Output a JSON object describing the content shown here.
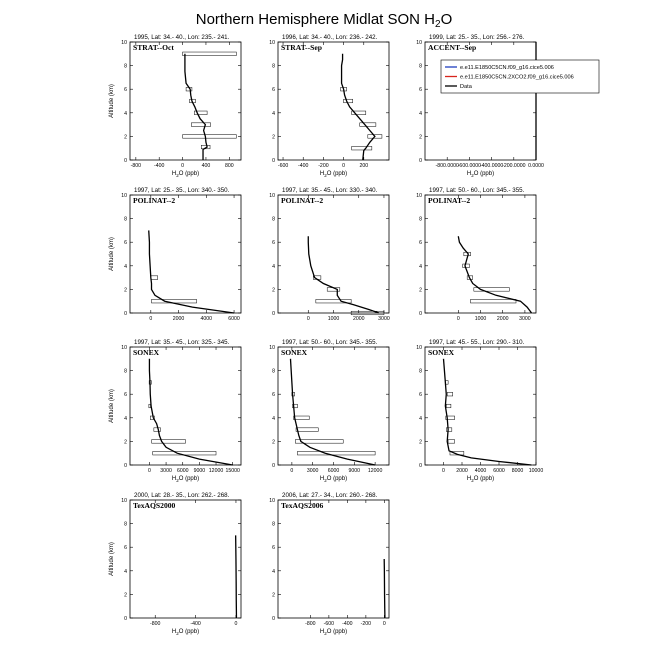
{
  "figure": {
    "title": "Northern Hemisphere Midlat SON H",
    "title_sub": "2",
    "title_tail": "O"
  },
  "legend": {
    "placement": "top-right, inside third panel",
    "entries": [
      {
        "label": "e.e11.E1850C5CN.f09_g16.cice5.006",
        "color": "#1f3fbf"
      },
      {
        "label": "e.e11.E1850C5CN.2XCO2.f09_g16.cice5.006",
        "color": "#d8241c"
      },
      {
        "label": "Data",
        "color": "#000000"
      }
    ]
  },
  "chart_data": [
    {
      "type": "line",
      "header": "1995, Lat: 34.- 40., Lon: 235.- 241.",
      "label": "STRAT--Oct",
      "xlabel": "H2O (ppb)",
      "ylabel": "Altitude (km)",
      "xlim": [
        -900,
        1000
      ],
      "ylim": [
        0,
        10
      ],
      "xticks": [
        -800,
        -400,
        0,
        400,
        800
      ],
      "yticks": [
        0,
        2,
        4,
        6,
        8,
        10
      ],
      "profile": [
        [
          350,
          0
        ],
        [
          350,
          0.9
        ],
        [
          420,
          1.1
        ],
        [
          400,
          1.5
        ],
        [
          390,
          2
        ],
        [
          360,
          2.5
        ],
        [
          390,
          3
        ],
        [
          300,
          3.5
        ],
        [
          250,
          4
        ],
        [
          210,
          4.5
        ],
        [
          160,
          5
        ],
        [
          140,
          5.5
        ],
        [
          130,
          6
        ],
        [
          60,
          6.5
        ],
        [
          50,
          7
        ],
        [
          40,
          7.5
        ],
        [
          40,
          8
        ],
        [
          40,
          8.5
        ],
        [
          40,
          9
        ]
      ],
      "boxes": [
        [
          320,
          470,
          0.95,
          1.25
        ],
        [
          0,
          920,
          1.85,
          2.15
        ],
        [
          150,
          480,
          2.85,
          3.15
        ],
        [
          200,
          420,
          3.85,
          4.15
        ],
        [
          120,
          220,
          4.85,
          5.15
        ],
        [
          60,
          160,
          5.85,
          6.15
        ],
        [
          0,
          920,
          8.85,
          9.15
        ]
      ]
    },
    {
      "type": "line",
      "header": "1996, Lat: 34.- 40., Lon: 236.- 242.",
      "label": "STRAT--Sep",
      "xlabel": "H2O (ppb)",
      "ylabel": "",
      "xlim": [
        -650,
        450
      ],
      "ylim": [
        0,
        10
      ],
      "xticks": [
        -600,
        -400,
        -200,
        0,
        200
      ],
      "yticks": [
        0,
        2,
        4,
        6,
        8,
        10
      ],
      "profile": [
        [
          190,
          0
        ],
        [
          200,
          0.8
        ],
        [
          220,
          1
        ],
        [
          260,
          1.5
        ],
        [
          310,
          2
        ],
        [
          260,
          2.5
        ],
        [
          210,
          3
        ],
        [
          160,
          3.5
        ],
        [
          110,
          4
        ],
        [
          60,
          4.5
        ],
        [
          30,
          5
        ],
        [
          10,
          5.5
        ],
        [
          0,
          6
        ],
        [
          -20,
          6.5
        ],
        [
          -20,
          7
        ],
        [
          -20,
          7.5
        ],
        [
          -20,
          8
        ],
        [
          -10,
          8.5
        ],
        [
          -10,
          9
        ]
      ],
      "boxes": [
        [
          80,
          280,
          0.85,
          1.15
        ],
        [
          240,
          380,
          1.85,
          2.15
        ],
        [
          160,
          320,
          2.85,
          3.15
        ],
        [
          80,
          220,
          3.85,
          4.15
        ],
        [
          0,
          90,
          4.85,
          5.15
        ],
        [
          -30,
          30,
          5.85,
          6.15
        ]
      ]
    },
    {
      "type": "line",
      "header": "1999, Lat: 25.- 35., Lon: 256.- 276.",
      "label": "ACCENT--Sep",
      "xlabel": "H2O (ppb)",
      "ylabel": "",
      "xlim": [
        -1000000,
        0
      ],
      "ylim": [
        0,
        10
      ],
      "xticks": [
        -800000,
        -600000,
        -400000,
        -200000,
        0
      ],
      "xticklabels": [
        "-800.0000",
        "-600.0000",
        "-400.0000",
        "-200.0000",
        "0.0000"
      ],
      "yticks": [
        0,
        2,
        4,
        6,
        8,
        10
      ],
      "profile": [
        [
          0,
          0
        ],
        [
          0,
          10
        ]
      ],
      "boxes": []
    },
    {
      "type": "line",
      "header": "1997, Lat: 25.- 35., Lon: 340.- 350.",
      "label": "POLINAT--2",
      "xlabel": "",
      "ylabel": "Altitude (km)",
      "xlim": [
        -1500,
        6500
      ],
      "ylim": [
        0,
        10
      ],
      "xticks": [
        0,
        2000,
        4000,
        6000
      ],
      "yticks": [
        0,
        2,
        4,
        6,
        8,
        10
      ],
      "profile": [
        [
          6000,
          0
        ],
        [
          3000,
          0.5
        ],
        [
          1000,
          1
        ],
        [
          300,
          1.5
        ],
        [
          50,
          2
        ],
        [
          50,
          2.5
        ],
        [
          0,
          3
        ],
        [
          -50,
          4
        ],
        [
          -100,
          5
        ],
        [
          -100,
          6
        ],
        [
          -150,
          7
        ]
      ],
      "boxes": [
        [
          50,
          3300,
          0.85,
          1.15
        ],
        [
          0,
          500,
          2.85,
          3.15
        ]
      ]
    },
    {
      "type": "line",
      "header": "1997, Lat: 35.- 45., Lon: 330.- 340.",
      "label": "POLINAT--2",
      "xlabel": "",
      "ylabel": "",
      "xlim": [
        -1200,
        3200
      ],
      "ylim": [
        0,
        10
      ],
      "xticks": [
        0,
        1000,
        2000,
        3000
      ],
      "yticks": [
        0,
        2,
        4,
        6,
        8,
        10
      ],
      "profile": [
        [
          2800,
          0
        ],
        [
          2400,
          0.3
        ],
        [
          1800,
          0.7
        ],
        [
          1300,
          1
        ],
        [
          1150,
          1.5
        ],
        [
          1150,
          2
        ],
        [
          600,
          2.5
        ],
        [
          250,
          3
        ],
        [
          100,
          4
        ],
        [
          20,
          5
        ],
        [
          0,
          6
        ],
        [
          0,
          6.5
        ]
      ],
      "boxes": [
        [
          1700,
          3000,
          -0.15,
          0.15
        ],
        [
          300,
          1700,
          0.85,
          1.15
        ],
        [
          750,
          1250,
          1.85,
          2.15
        ],
        [
          200,
          500,
          2.85,
          3.15
        ]
      ]
    },
    {
      "type": "line",
      "header": "1997, Lat: 50.- 60., Lon: 345.- 355.",
      "label": "POLINAT--2",
      "xlabel": "",
      "ylabel": "",
      "xlim": [
        -1500,
        3500
      ],
      "ylim": [
        0,
        10
      ],
      "xticks": [
        0,
        1000,
        2000,
        3000
      ],
      "yticks": [
        0,
        2,
        4,
        6,
        8,
        10
      ],
      "profile": [
        [
          3300,
          0
        ],
        [
          3100,
          0.5
        ],
        [
          2800,
          1
        ],
        [
          1700,
          1.5
        ],
        [
          1000,
          2
        ],
        [
          650,
          2.5
        ],
        [
          500,
          3
        ],
        [
          300,
          4
        ],
        [
          450,
          5
        ],
        [
          220,
          5.5
        ],
        [
          50,
          6
        ],
        [
          0,
          6.5
        ]
      ],
      "boxes": [
        [
          550,
          2600,
          0.85,
          1.15
        ],
        [
          700,
          2300,
          1.85,
          2.15
        ],
        [
          400,
          650,
          2.85,
          3.15
        ],
        [
          200,
          500,
          3.85,
          4.15
        ],
        [
          250,
          550,
          4.85,
          5.15
        ]
      ]
    },
    {
      "type": "line",
      "header": "1997, Lat: 35.- 45., Lon: 325.- 345.",
      "label": "SONEX",
      "xlabel": "H2O (ppb)",
      "ylabel": "Altitude (km)",
      "xlim": [
        -3500,
        16500
      ],
      "ylim": [
        0,
        10
      ],
      "xticks": [
        0,
        3000,
        6000,
        9000,
        12000,
        15000
      ],
      "yticks": [
        0,
        2,
        4,
        6,
        8,
        10
      ],
      "profile": [
        [
          15000,
          0
        ],
        [
          9000,
          0.5
        ],
        [
          5000,
          1
        ],
        [
          3000,
          1.5
        ],
        [
          2200,
          2
        ],
        [
          1800,
          2.5
        ],
        [
          1600,
          3
        ],
        [
          1300,
          3.5
        ],
        [
          700,
          4
        ],
        [
          300,
          5
        ],
        [
          150,
          6
        ],
        [
          100,
          7
        ],
        [
          0,
          8
        ],
        [
          0,
          9
        ]
      ],
      "boxes": [
        [
          600,
          12000,
          0.85,
          1.15
        ],
        [
          400,
          6500,
          1.85,
          2.15
        ],
        [
          800,
          2000,
          2.85,
          3.15
        ],
        [
          150,
          900,
          3.85,
          4.15
        ],
        [
          -100,
          200,
          4.85,
          5.15
        ],
        [
          -50,
          350,
          6.85,
          7.15
        ]
      ]
    },
    {
      "type": "line",
      "header": "1997, Lat: 50.- 60., Lon: 345.- 355.",
      "label": "SONEX",
      "xlabel": "H2O (ppb)",
      "ylabel": "",
      "xlim": [
        -2000,
        14000
      ],
      "ylim": [
        0,
        10
      ],
      "xticks": [
        0,
        3000,
        6000,
        9000,
        12000
      ],
      "yticks": [
        0,
        2,
        4,
        6,
        8,
        10
      ],
      "profile": [
        [
          12000,
          0
        ],
        [
          8000,
          0.5
        ],
        [
          4800,
          1
        ],
        [
          2600,
          1.5
        ],
        [
          1300,
          2
        ],
        [
          1000,
          2.5
        ],
        [
          800,
          3
        ],
        [
          400,
          4
        ],
        [
          250,
          5
        ],
        [
          100,
          6
        ],
        [
          0,
          7
        ],
        [
          -100,
          8
        ],
        [
          -200,
          9
        ]
      ],
      "boxes": [
        [
          800,
          12000,
          0.85,
          1.15
        ],
        [
          500,
          7400,
          1.85,
          2.15
        ],
        [
          600,
          3800,
          2.85,
          3.15
        ],
        [
          250,
          2500,
          3.85,
          4.15
        ],
        [
          100,
          800,
          4.85,
          5.15
        ],
        [
          0,
          400,
          5.85,
          6.15
        ]
      ]
    },
    {
      "type": "line",
      "header": "1997, Lat: 45.- 55., Lon: 290.- 310.",
      "label": "SONEX",
      "xlabel": "H2O (ppb)",
      "ylabel": "",
      "xlim": [
        -2000,
        10000
      ],
      "ylim": [
        0,
        10
      ],
      "xticks": [
        0,
        2000,
        4000,
        6000,
        8000,
        10000
      ],
      "yticks": [
        0,
        2,
        4,
        6,
        8,
        10
      ],
      "profile": [
        [
          9500,
          0
        ],
        [
          6000,
          0.3
        ],
        [
          3000,
          0.6
        ],
        [
          1500,
          0.9
        ],
        [
          600,
          1.2
        ],
        [
          400,
          2
        ],
        [
          500,
          3
        ],
        [
          400,
          4
        ],
        [
          200,
          5
        ],
        [
          300,
          6
        ],
        [
          200,
          7
        ],
        [
          100,
          8
        ],
        [
          0,
          9
        ]
      ],
      "boxes": [
        [
          700,
          2200,
          0.85,
          1.15
        ],
        [
          500,
          1200,
          1.85,
          2.15
        ],
        [
          300,
          900,
          2.85,
          3.15
        ],
        [
          250,
          1200,
          3.85,
          4.15
        ],
        [
          300,
          800,
          4.85,
          5.15
        ],
        [
          400,
          1000,
          5.85,
          6.15
        ],
        [
          200,
          500,
          6.85,
          7.15
        ]
      ]
    },
    {
      "type": "line",
      "header": "2000, Lat: 28.- 35., Lon: 262.- 268.",
      "label": "TexAQS2000",
      "xlabel": "H2O (ppb)",
      "ylabel": "Altitude (km)",
      "xlim": [
        -1050,
        50
      ],
      "ylim": [
        0,
        10
      ],
      "xticks": [
        -800,
        -400,
        0
      ],
      "yticks": [
        0,
        2,
        4,
        6,
        8,
        10
      ],
      "profile": [
        [
          5,
          0
        ],
        [
          4,
          0.8
        ],
        [
          3,
          1.5
        ],
        [
          2,
          3
        ],
        [
          0,
          5
        ],
        [
          -3,
          7
        ]
      ],
      "boxes": []
    },
    {
      "type": "line",
      "header": "2006, Lat: 27.- 34., Lon: 260.- 268.",
      "label": "TexAQS2006",
      "xlabel": "H2O (ppb)",
      "ylabel": "",
      "xlim": [
        -1150,
        50
      ],
      "ylim": [
        0,
        10
      ],
      "xticks": [
        -800,
        -600,
        -400,
        -200,
        0
      ],
      "yticks": [
        0,
        2,
        4,
        6,
        8,
        10
      ],
      "profile": [
        [
          6,
          0
        ],
        [
          4,
          0.8
        ],
        [
          2,
          2
        ],
        [
          1,
          3
        ],
        [
          0,
          4
        ],
        [
          -2,
          5
        ]
      ],
      "boxes": []
    }
  ]
}
